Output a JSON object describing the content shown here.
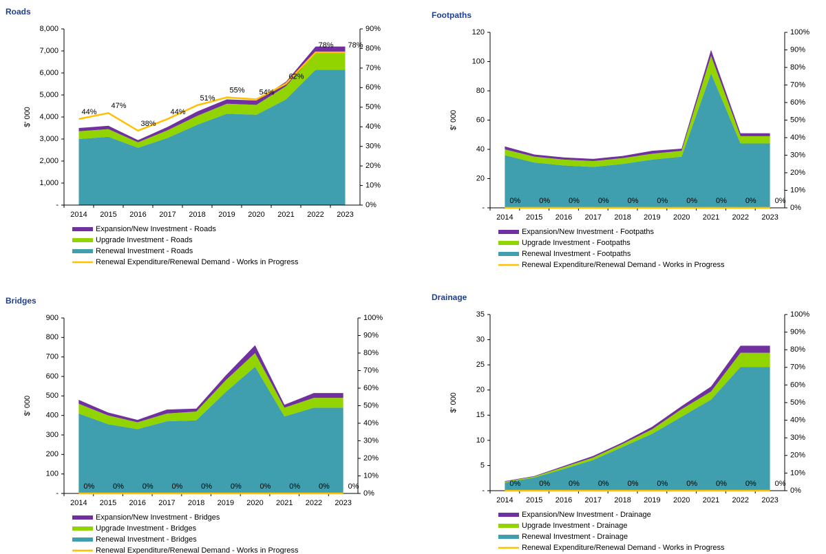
{
  "chart_data": [
    {
      "type": "area",
      "title": "Roads",
      "ylabel": "$' 000",
      "categories": [
        "2014",
        "2015",
        "2016",
        "2017",
        "2018",
        "2019",
        "2020",
        "2021",
        "2022",
        "2023"
      ],
      "ylim": [
        0,
        8000
      ],
      "yticks": [
        {
          "value": 0,
          "label": "-"
        },
        {
          "value": 1000,
          "label": "1,000"
        },
        {
          "value": 2000,
          "label": "2,000"
        },
        {
          "value": 3000,
          "label": "3,000"
        },
        {
          "value": 4000,
          "label": "4,000"
        },
        {
          "value": 5000,
          "label": "5,000"
        },
        {
          "value": 6000,
          "label": "6,000"
        },
        {
          "value": 7000,
          "label": "7,000"
        },
        {
          "value": 8000,
          "label": "8,000"
        }
      ],
      "y2lim": [
        0,
        90
      ],
      "y2ticks": [
        {
          "value": 0,
          "label": "0%"
        },
        {
          "value": 10,
          "label": "10%"
        },
        {
          "value": 20,
          "label": "20%"
        },
        {
          "value": 30,
          "label": "30%"
        },
        {
          "value": 40,
          "label": "40%"
        },
        {
          "value": 50,
          "label": "50%"
        },
        {
          "value": 60,
          "label": "60%"
        },
        {
          "value": 70,
          "label": "70%"
        },
        {
          "value": 80,
          "label": "80%"
        },
        {
          "value": 90,
          "label": "90%"
        }
      ],
      "series": [
        {
          "name": "Expansion/New Investment - Roads",
          "type": "area",
          "color": "#7030a0",
          "values": [
            150,
            150,
            100,
            150,
            200,
            200,
            200,
            200,
            300,
            300
          ]
        },
        {
          "name": "Upgrade Investment - Roads",
          "type": "area",
          "color": "#92d400",
          "values": [
            350,
            350,
            250,
            350,
            400,
            450,
            450,
            600,
            750,
            750
          ]
        },
        {
          "name": "Renewal Investment - Roads",
          "type": "area",
          "color": "#409fae",
          "values": [
            3000,
            3100,
            2600,
            3050,
            3650,
            4150,
            4100,
            4800,
            6150,
            6150
          ]
        },
        {
          "name": "Renewal Expenditure/Renewal Demand - Works in Progress",
          "type": "line",
          "axis": "y2",
          "color": "#ffc000",
          "values": [
            44,
            47,
            38,
            44,
            51,
            55,
            54,
            62,
            78,
            78
          ],
          "value_labels": [
            "44%",
            "47%",
            "38%",
            "44%",
            "51%",
            "55%",
            "54%",
            "62%",
            "78%",
            "78%"
          ]
        }
      ]
    },
    {
      "type": "area",
      "title": "Footpaths",
      "ylabel": "$' 000",
      "categories": [
        "2014",
        "2015",
        "2016",
        "2017",
        "2018",
        "2019",
        "2020",
        "2021",
        "2022",
        "2023"
      ],
      "ylim": [
        0,
        120
      ],
      "yticks": [
        {
          "value": 0,
          "label": "-"
        },
        20,
        40,
        60,
        80,
        100,
        120
      ],
      "y2lim": [
        0,
        100
      ],
      "y2ticks": [
        {
          "value": 0,
          "label": "0%"
        },
        {
          "value": 10,
          "label": "10%"
        },
        {
          "value": 20,
          "label": "20%"
        },
        {
          "value": 30,
          "label": "30%"
        },
        {
          "value": 40,
          "label": "40%"
        },
        {
          "value": 50,
          "label": "50%"
        },
        {
          "value": 60,
          "label": "60%"
        },
        {
          "value": 70,
          "label": "70%"
        },
        {
          "value": 80,
          "label": "80%"
        },
        {
          "value": 90,
          "label": "90%"
        },
        {
          "value": 100,
          "label": "100%"
        }
      ],
      "series": [
        {
          "name": "Expansion/New Investment - Footpaths",
          "type": "area",
          "color": "#7030a0",
          "values": [
            2,
            1.5,
            1.5,
            1.5,
            1.5,
            2,
            1.5,
            4,
            2,
            2
          ]
        },
        {
          "name": "Upgrade Investment - Footpaths",
          "type": "area",
          "color": "#92d400",
          "values": [
            4,
            4,
            4,
            4,
            4,
            4,
            4,
            12,
            5,
            5
          ]
        },
        {
          "name": "Renewal Investment - Footpaths",
          "type": "area",
          "color": "#409fae",
          "values": [
            36,
            31,
            29,
            28,
            30,
            33,
            35,
            92,
            44,
            44
          ]
        },
        {
          "name": "Renewal Expenditure/Renewal Demand - Works in Progress",
          "type": "line",
          "axis": "y2",
          "color": "#ffc000",
          "values": [
            0,
            0,
            0,
            0,
            0,
            0,
            0,
            0,
            0,
            0
          ],
          "value_labels": [
            "0%",
            "0%",
            "0%",
            "0%",
            "0%",
            "0%",
            "0%",
            "0%",
            "0%",
            "0%"
          ]
        }
      ]
    },
    {
      "type": "area",
      "title": "Bridges",
      "ylabel": "$' 000",
      "categories": [
        "2014",
        "2015",
        "2016",
        "2017",
        "2018",
        "2019",
        "2020",
        "2021",
        "2022",
        "2023"
      ],
      "ylim": [
        0,
        900
      ],
      "yticks": [
        {
          "value": 0,
          "label": "-"
        },
        100,
        200,
        300,
        400,
        500,
        600,
        700,
        800,
        900
      ],
      "y2lim": [
        0,
        100
      ],
      "y2ticks": [
        {
          "value": 0,
          "label": "0%"
        },
        {
          "value": 10,
          "label": "10%"
        },
        {
          "value": 20,
          "label": "20%"
        },
        {
          "value": 30,
          "label": "30%"
        },
        {
          "value": 40,
          "label": "40%"
        },
        {
          "value": 50,
          "label": "50%"
        },
        {
          "value": 60,
          "label": "60%"
        },
        {
          "value": 70,
          "label": "70%"
        },
        {
          "value": 80,
          "label": "80%"
        },
        {
          "value": 90,
          "label": "90%"
        },
        {
          "value": 100,
          "label": "100%"
        }
      ],
      "series": [
        {
          "name": "Expansion/New Investment - Bridges",
          "type": "area",
          "color": "#7030a0",
          "values": [
            20,
            15,
            12,
            20,
            15,
            25,
            40,
            15,
            25,
            25
          ]
        },
        {
          "name": "Upgrade Investment - Bridges",
          "type": "area",
          "color": "#92d400",
          "values": [
            50,
            45,
            35,
            40,
            45,
            60,
            70,
            45,
            50,
            50
          ]
        },
        {
          "name": "Renewal Investment - Bridges",
          "type": "area",
          "color": "#409fae",
          "values": [
            410,
            355,
            330,
            370,
            375,
            520,
            650,
            395,
            440,
            440
          ]
        },
        {
          "name": "Renewal Expenditure/Renewal Demand - Works in Progress",
          "type": "line",
          "axis": "y2",
          "color": "#ffc000",
          "values": [
            0,
            0,
            0,
            0,
            0,
            0,
            0,
            0,
            0,
            0
          ],
          "value_labels": [
            "0%",
            "0%",
            "0%",
            "0%",
            "0%",
            "0%",
            "0%",
            "0%",
            "0%",
            "0%"
          ]
        }
      ]
    },
    {
      "type": "area",
      "title": "Drainage",
      "ylabel": "$' 000",
      "categories": [
        "2014",
        "2015",
        "2016",
        "2017",
        "2018",
        "2019",
        "2020",
        "2021",
        "2022",
        "2023"
      ],
      "ylim": [
        0,
        35
      ],
      "yticks": [
        {
          "value": 0,
          "label": "-"
        },
        5,
        10,
        15,
        20,
        25,
        30,
        35
      ],
      "y2lim": [
        0,
        100
      ],
      "y2ticks": [
        {
          "value": 0,
          "label": "0%"
        },
        {
          "value": 10,
          "label": "10%"
        },
        {
          "value": 20,
          "label": "20%"
        },
        {
          "value": 30,
          "label": "30%"
        },
        {
          "value": 40,
          "label": "40%"
        },
        {
          "value": 50,
          "label": "50%"
        },
        {
          "value": 60,
          "label": "60%"
        },
        {
          "value": 70,
          "label": "70%"
        },
        {
          "value": 80,
          "label": "80%"
        },
        {
          "value": 90,
          "label": "90%"
        },
        {
          "value": 100,
          "label": "100%"
        }
      ],
      "series": [
        {
          "name": "Expansion/New Investment - Drainage",
          "type": "area",
          "color": "#7030a0",
          "values": [
            0.1,
            0.1,
            0.2,
            0.3,
            0.3,
            0.5,
            0.6,
            1.0,
            1.4,
            1.4
          ]
        },
        {
          "name": "Upgrade Investment - Drainage",
          "type": "area",
          "color": "#92d400",
          "values": [
            0.2,
            0.2,
            0.4,
            0.5,
            0.6,
            0.9,
            1.5,
            1.6,
            2.8,
            2.8
          ]
        },
        {
          "name": "Renewal Investment - Drainage",
          "type": "area",
          "color": "#409fae",
          "values": [
            1.6,
            2.6,
            4.3,
            6.1,
            8.7,
            11.3,
            14.7,
            18.1,
            24.6,
            24.6
          ]
        },
        {
          "name": "Renewal Expenditure/Renewal Demand - Works in Progress",
          "type": "line",
          "axis": "y2",
          "color": "#ffc000",
          "values": [
            0,
            0,
            0,
            0,
            0,
            0,
            0,
            0,
            0,
            0
          ],
          "value_labels": [
            "0%",
            "0%",
            "0%",
            "0%",
            "0%",
            "0%",
            "0%",
            "0%",
            "0%",
            "0%"
          ]
        }
      ]
    }
  ]
}
